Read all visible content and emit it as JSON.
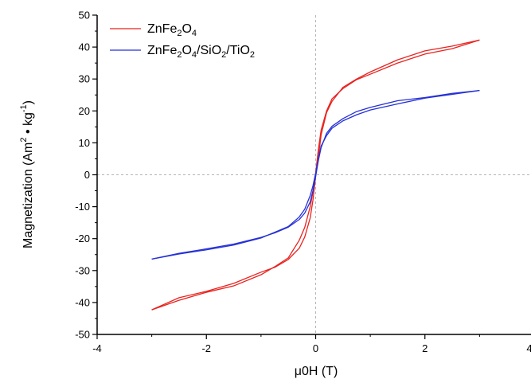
{
  "chart_data": {
    "type": "line",
    "title": "",
    "xlabel": "μ0H (T)",
    "ylabel": {
      "parts": [
        "Magnetization (Am",
        "2",
        " • kg",
        "-1",
        ")"
      ]
    },
    "xlim": [
      -4,
      4
    ],
    "ylim": [
      -50,
      50
    ],
    "x_ticks": [
      -4,
      -2,
      0,
      2,
      4
    ],
    "x_tick_labels": [
      "-4",
      "-2",
      "0",
      "2",
      "4"
    ],
    "y_ticks": [
      -50,
      -40,
      -30,
      -20,
      -10,
      0,
      10,
      20,
      30,
      40,
      50
    ],
    "y_tick_labels": [
      "-50",
      "-40",
      "-30",
      "-20",
      "-10",
      "0",
      "10",
      "20",
      "30",
      "40",
      "50"
    ],
    "zero_lines": true,
    "legend_position": "top-left",
    "series": [
      {
        "name": "ZnFe2O4",
        "legend_parts": [
          [
            "ZnFe",
            false
          ],
          [
            "2",
            true
          ],
          [
            "O",
            false
          ],
          [
            "4",
            true
          ]
        ],
        "color": "#e8231f",
        "branches": [
          {
            "x": [
              -3,
              -2.5,
              -2,
              -1.5,
              -1,
              -0.75,
              -0.5,
              -0.3,
              -0.2,
              -0.1,
              -0.05,
              0,
              0.05,
              0.1,
              0.2,
              0.3,
              0.5,
              0.75,
              1,
              1.5,
              2,
              2.5,
              3
            ],
            "y": [
              -42.3,
              -39.3,
              -36.8,
              -34.8,
              -31.3,
              -28.8,
              -26,
              -20.5,
              -16.5,
              -10,
              -5.5,
              0.5,
              8,
              14,
              20,
              23.8,
              27,
              29.8,
              31.5,
              35,
              37.8,
              39.5,
              42.2
            ]
          },
          {
            "x": [
              3,
              2.5,
              2,
              1.5,
              1,
              0.75,
              0.5,
              0.3,
              0.2,
              0.1,
              0.05,
              0,
              -0.05,
              -0.1,
              -0.2,
              -0.3,
              -0.5,
              -0.75,
              -1,
              -1.5,
              -2,
              -2.5,
              -3
            ],
            "y": [
              42.2,
              40.3,
              38.8,
              36,
              32.2,
              30,
              27.4,
              23,
              19.5,
              12.5,
              5.5,
              -0.5,
              -8,
              -13.5,
              -19.5,
              -23,
              -26.5,
              -29,
              -30.5,
              -34,
              -36.5,
              -38.5,
              -42.3
            ]
          }
        ]
      },
      {
        "name": "ZnFe2O4/SiO2/TiO2",
        "legend_parts": [
          [
            "ZnFe",
            false
          ],
          [
            "2",
            true
          ],
          [
            "O",
            false
          ],
          [
            "4",
            true
          ],
          [
            "/SiO",
            false
          ],
          [
            "2",
            true
          ],
          [
            "/TiO",
            false
          ],
          [
            "2",
            true
          ]
        ],
        "color": "#2530d6",
        "branches": [
          {
            "x": [
              -3,
              -2.5,
              -2,
              -1.5,
              -1,
              -0.75,
              -0.5,
              -0.3,
              -0.2,
              -0.1,
              -0.05,
              0,
              0.05,
              0.1,
              0.2,
              0.3,
              0.5,
              0.75,
              1,
              1.5,
              2,
              2.5,
              3
            ],
            "y": [
              -26.4,
              -24.8,
              -23.5,
              -22,
              -19.8,
              -18,
              -16.2,
              -13.2,
              -10.8,
              -6.5,
              -3.5,
              0.5,
              5,
              9,
              12.3,
              14.6,
              16.9,
              18.8,
              20.3,
              22.2,
              24,
              25.2,
              26.4
            ]
          },
          {
            "x": [
              3,
              2.5,
              2,
              1.5,
              1,
              0.75,
              0.5,
              0.3,
              0.2,
              0.1,
              0.05,
              0,
              -0.05,
              -0.1,
              -0.2,
              -0.3,
              -0.5,
              -0.75,
              -1,
              -1.5,
              -2,
              -2.5,
              -3
            ],
            "y": [
              26.4,
              25.5,
              24.2,
              23.2,
              21.1,
              19.8,
              17.6,
              15.2,
              13,
              8.5,
              4.5,
              -0.5,
              -5,
              -8.5,
              -12,
              -14,
              -16.4,
              -18.2,
              -19.6,
              -21.7,
              -23.2,
              -24.6,
              -26.4
            ]
          }
        ]
      }
    ]
  }
}
